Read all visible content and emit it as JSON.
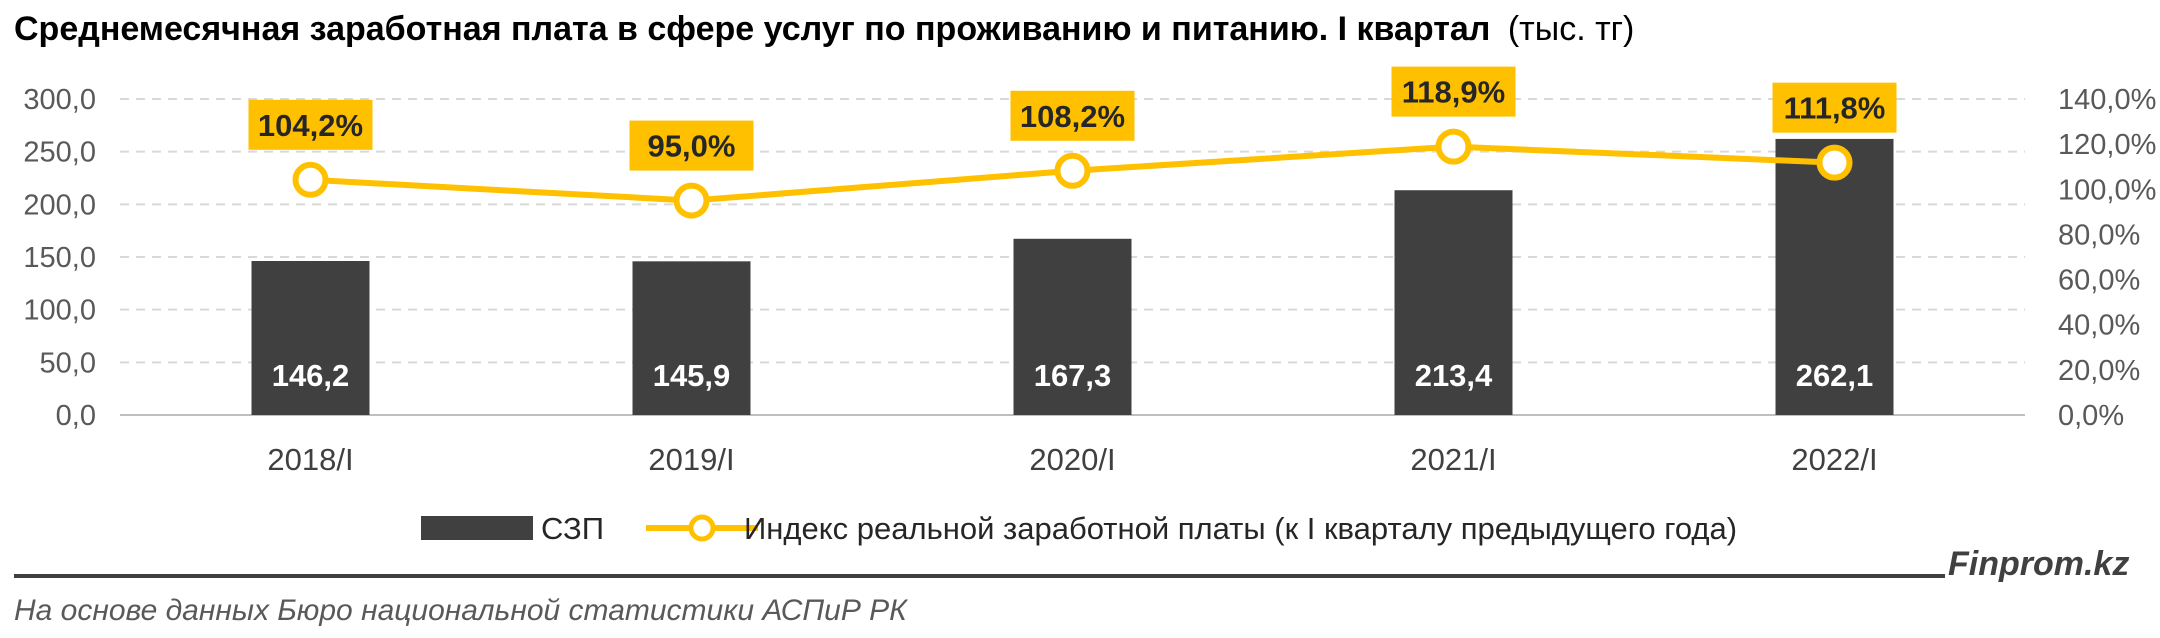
{
  "header": {
    "title_main": "Среднемесячная заработная плата в сфере услуг по проживанию и питанию. I квартал",
    "title_unit": "(тыс. тг)"
  },
  "footer": {
    "brand": "Finprom.kz",
    "source": "На основе данных Бюро национальной статистики АСПиР РК"
  },
  "colors": {
    "bar": "#404040",
    "line": "#FFC000",
    "label_box": "#FFC000",
    "grid": "#D9D9D9"
  },
  "chart_data": {
    "type": "bar",
    "categories": [
      "2018/I",
      "2019/I",
      "2020/I",
      "2021/I",
      "2022/I"
    ],
    "series": [
      {
        "name": "СЗП",
        "type": "bar",
        "axis": "left",
        "values": [
          146.2,
          145.9,
          167.3,
          213.4,
          262.1
        ],
        "labels": [
          "146,2",
          "145,9",
          "167,3",
          "213,4",
          "262,1"
        ]
      },
      {
        "name": "Индекс реальной заработной платы (к I кварталу предыдущего года)",
        "type": "line",
        "axis": "right",
        "values": [
          104.2,
          95.0,
          108.2,
          118.9,
          111.8
        ],
        "labels": [
          "104,2%",
          "95,0%",
          "108,2%",
          "118,9%",
          "111,8%"
        ]
      }
    ],
    "y_left": {
      "min": 0,
      "max": 300,
      "step": 50,
      "ticks": [
        "0,0",
        "50,0",
        "100,0",
        "150,0",
        "200,0",
        "250,0",
        "300,0"
      ]
    },
    "y_right": {
      "min": 0,
      "max": 140,
      "step": 20,
      "ticks": [
        "0,0%",
        "20,0%",
        "40,0%",
        "60,0%",
        "80,0%",
        "100,0%",
        "120,0%",
        "140,0%"
      ]
    },
    "grid": true,
    "legend": "bottom"
  }
}
